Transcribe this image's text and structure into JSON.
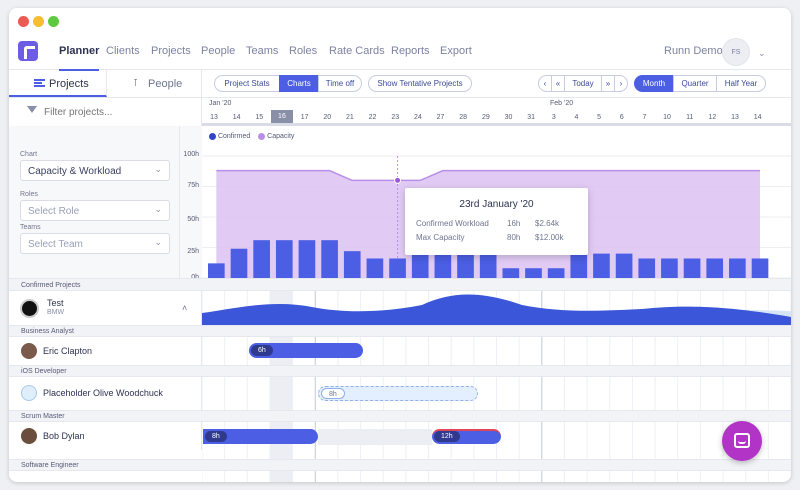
{
  "nav": {
    "items": [
      "Planner",
      "Clients",
      "Projects",
      "People",
      "Teams",
      "Roles",
      "Rate Cards",
      "Reports",
      "Export"
    ],
    "account": "Runn Demo",
    "avatar_initials": "FS"
  },
  "sidebar_tabs": {
    "projects": "Projects",
    "people": "People"
  },
  "toolbar": {
    "project_stats": "Project Stats",
    "charts": "Charts",
    "time_off": "Time off",
    "tentative": "Show Tentative Projects",
    "today": "Today",
    "month": "Month",
    "quarter": "Quarter",
    "half_year": "Half Year"
  },
  "filter": {
    "placeholder": "Filter projects..."
  },
  "timeline": {
    "months": [
      "Jan '20",
      "Feb '20"
    ],
    "days": [
      "13",
      "14",
      "15",
      "16",
      "17",
      "20",
      "21",
      "22",
      "23",
      "24",
      "27",
      "28",
      "29",
      "30",
      "31",
      "3",
      "4",
      "5",
      "6",
      "7",
      "10",
      "11",
      "12",
      "13",
      "14"
    ],
    "highlight_day": "16"
  },
  "chart_panel": {
    "chart_label": "Chart",
    "chart_value": "Capacity & Workload",
    "roles_label": "Roles",
    "roles_placeholder": "Select Role",
    "teams_label": "Teams",
    "teams_placeholder": "Select Team"
  },
  "chart_data": {
    "type": "bar",
    "legend": [
      "Confirmed",
      "Capacity"
    ],
    "yticks": [
      "100h",
      "75h",
      "50h",
      "25h",
      "0h"
    ],
    "ylim": [
      0,
      100
    ],
    "confirmed": [
      12,
      24,
      31,
      31,
      31,
      31,
      22,
      16,
      16,
      24,
      24,
      24,
      20,
      8,
      8,
      8,
      20,
      20,
      20,
      16,
      16,
      16,
      16,
      16,
      16
    ],
    "capacity": [
      88,
      88,
      88,
      88,
      88,
      88,
      80,
      80,
      80,
      80,
      88,
      88,
      88,
      88,
      88,
      88,
      88,
      88,
      88,
      88,
      88,
      88,
      88,
      88,
      88
    ],
    "colors": {
      "confirmed": "#4b5ee4",
      "capacity": "#c9a6ef"
    },
    "tooltip": {
      "date": "23rd January '20",
      "rows": [
        {
          "label": "Confirmed Workload",
          "hours": "16h",
          "amount": "$2.64k"
        },
        {
          "label": "Max Capacity",
          "hours": "80h",
          "amount": "$12.00k"
        }
      ]
    }
  },
  "confirmed": {
    "header": "Confirmed Projects",
    "project": {
      "name": "Test",
      "client": "BMW"
    },
    "roles": [
      {
        "role": "Business Analyst",
        "person": "Eric Clapton",
        "hours": "6h"
      },
      {
        "role": "iOS Developer",
        "person": "Placeholder Olive Woodchuck",
        "hours": "8h"
      },
      {
        "role": "Scrum Master",
        "person": "Bob Dylan",
        "hours": "8h",
        "hours2": "12h"
      },
      {
        "role": "Software Engineer"
      }
    ]
  }
}
